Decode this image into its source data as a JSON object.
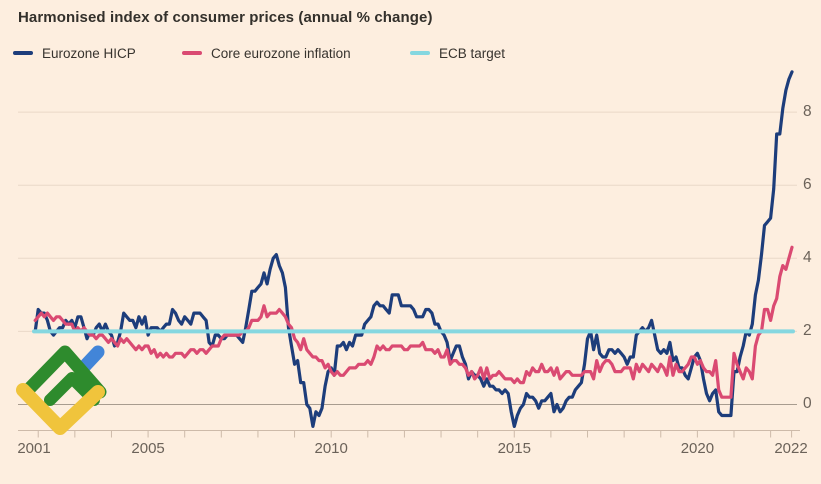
{
  "header": {
    "title": "Harmonised index of consumer prices (annual % change)"
  },
  "legend": [
    {
      "label": "Eurozone HICP",
      "color": "#1d3d7b"
    },
    {
      "label": "Core eurozone inflation",
      "color": "#da4a72"
    },
    {
      "label": "ECB target",
      "color": "#85d7e0"
    }
  ],
  "colors": {
    "background": "#fdeedf",
    "grid": "#ead8c8",
    "grid_zero": "#a89c8f",
    "axis": "#cdbaa9",
    "tick_label": "#6b6259",
    "title_text": "#33302b"
  },
  "watermark": {
    "name": "litefinance-logo",
    "green": "#2e8b2d",
    "blue": "#4285d8",
    "yellow": "#f0c43c"
  },
  "chart_data": {
    "type": "line",
    "title": "Harmonised index of consumer prices (annual % change)",
    "xlabel": "",
    "ylabel": "annual % change",
    "grid": "horizontal",
    "legend_position": "top",
    "xlim": [
      2001,
      2022.75
    ],
    "ylim": [
      -1,
      9.5
    ],
    "y_ticks": [
      0,
      2,
      4,
      6,
      8
    ],
    "x_tick_years": [
      2002,
      2003,
      2004,
      2005,
      2006,
      2007,
      2008,
      2009,
      2010,
      2011,
      2012,
      2013,
      2014,
      2015,
      2016,
      2017,
      2018,
      2019,
      2020,
      2021,
      2022
    ],
    "x_tick_labels": [
      {
        "label": "2001",
        "year": 2001,
        "edge": "start"
      },
      {
        "label": "2005",
        "year": 2005
      },
      {
        "label": "2010",
        "year": 2010
      },
      {
        "label": "2015",
        "year": 2015
      },
      {
        "label": "2020",
        "year": 2020
      },
      {
        "label": "2022",
        "year": 2022,
        "edge": "end"
      }
    ],
    "series": [
      {
        "name": "Eurozone HICP",
        "color": "#1d3d7b",
        "start_year": 2001.9167,
        "interval_months": 1,
        "values": [
          2.0,
          2.6,
          2.5,
          2.5,
          2.3,
          2.0,
          1.9,
          2.0,
          2.1,
          2.1,
          2.3,
          2.2,
          2.3,
          2.1,
          2.4,
          2.4,
          2.1,
          1.8,
          2.0,
          1.9,
          2.1,
          2.2,
          2.0,
          2.2,
          2.0,
          1.9,
          1.6,
          1.7,
          2.0,
          2.5,
          2.4,
          2.3,
          2.3,
          2.1,
          2.4,
          2.2,
          2.4,
          1.9,
          2.1,
          2.1,
          2.1,
          2.0,
          2.1,
          2.2,
          2.2,
          2.6,
          2.5,
          2.3,
          2.2,
          2.4,
          2.3,
          2.2,
          2.5,
          2.5,
          2.5,
          2.4,
          2.3,
          1.7,
          1.6,
          1.9,
          1.9,
          1.8,
          1.8,
          1.9,
          1.9,
          1.9,
          1.9,
          1.8,
          1.7,
          2.1,
          2.6,
          3.1,
          3.1,
          3.2,
          3.3,
          3.6,
          3.3,
          3.7,
          4.0,
          4.1,
          3.8,
          3.6,
          3.2,
          2.1,
          1.6,
          1.1,
          1.2,
          0.6,
          0.6,
          0.0,
          -0.1,
          -0.6,
          -0.2,
          -0.3,
          -0.1,
          0.5,
          0.9,
          1.0,
          0.8,
          1.6,
          1.6,
          1.7,
          1.5,
          1.7,
          1.6,
          1.9,
          1.9,
          1.9,
          2.2,
          2.3,
          2.4,
          2.7,
          2.8,
          2.7,
          2.7,
          2.6,
          2.5,
          3.0,
          3.0,
          3.0,
          2.7,
          2.7,
          2.7,
          2.7,
          2.6,
          2.4,
          2.4,
          2.4,
          2.6,
          2.6,
          2.5,
          2.2,
          2.2,
          2.0,
          1.9,
          1.7,
          1.2,
          1.4,
          1.6,
          1.6,
          1.3,
          1.1,
          0.7,
          0.9,
          0.8,
          0.8,
          0.7,
          0.5,
          0.7,
          0.5,
          0.5,
          0.4,
          0.4,
          0.3,
          0.4,
          0.3,
          -0.2,
          -0.6,
          -0.3,
          -0.1,
          0.0,
          0.3,
          0.2,
          0.2,
          0.1,
          -0.1,
          0.1,
          0.1,
          0.2,
          0.3,
          -0.2,
          0.0,
          -0.2,
          -0.1,
          0.1,
          0.2,
          0.2,
          0.4,
          0.5,
          0.6,
          1.1,
          1.8,
          2.0,
          1.5,
          1.9,
          1.4,
          1.3,
          1.3,
          1.5,
          1.5,
          1.4,
          1.5,
          1.4,
          1.3,
          1.1,
          1.3,
          1.3,
          1.9,
          2.0,
          2.1,
          2.0,
          2.1,
          2.3,
          1.9,
          1.5,
          1.4,
          1.5,
          1.4,
          1.7,
          1.2,
          1.3,
          1.0,
          1.0,
          0.8,
          0.7,
          1.0,
          1.3,
          1.4,
          1.2,
          0.7,
          0.3,
          0.1,
          0.3,
          0.4,
          -0.2,
          -0.3,
          -0.3,
          -0.3,
          -0.3,
          0.9,
          0.9,
          1.3,
          1.6,
          2.0,
          1.9,
          2.2,
          3.0,
          3.4,
          4.1,
          4.9,
          5.0,
          5.1,
          5.9,
          7.4,
          7.4,
          8.1,
          8.6,
          8.9,
          9.1
        ]
      },
      {
        "name": "Core eurozone inflation",
        "color": "#da4a72",
        "start_year": 2001.9167,
        "interval_months": 1,
        "values": [
          2.3,
          2.4,
          2.5,
          2.4,
          2.5,
          2.4,
          2.3,
          2.4,
          2.4,
          2.3,
          2.2,
          2.2,
          2.2,
          2.0,
          2.1,
          2.0,
          2.1,
          2.0,
          1.9,
          1.9,
          1.8,
          1.9,
          1.9,
          1.8,
          1.7,
          1.8,
          1.7,
          1.6,
          1.8,
          1.7,
          1.8,
          1.7,
          1.6,
          1.5,
          1.6,
          1.5,
          1.6,
          1.6,
          1.4,
          1.5,
          1.3,
          1.4,
          1.3,
          1.4,
          1.3,
          1.3,
          1.4,
          1.4,
          1.4,
          1.3,
          1.4,
          1.5,
          1.5,
          1.4,
          1.5,
          1.5,
          1.4,
          1.5,
          1.6,
          1.6,
          1.6,
          1.8,
          1.9,
          1.9,
          1.9,
          1.9,
          1.9,
          1.9,
          2.0,
          2.0,
          2.1,
          2.3,
          2.3,
          2.3,
          2.4,
          2.7,
          2.4,
          2.5,
          2.5,
          2.5,
          2.6,
          2.5,
          2.4,
          2.2,
          2.1,
          1.8,
          1.7,
          1.5,
          1.8,
          1.5,
          1.4,
          1.3,
          1.3,
          1.2,
          1.2,
          1.0,
          1.1,
          0.9,
          0.8,
          0.9,
          0.8,
          0.8,
          0.9,
          1.0,
          1.0,
          1.0,
          1.1,
          1.1,
          1.1,
          1.2,
          1.1,
          1.3,
          1.6,
          1.5,
          1.6,
          1.5,
          1.5,
          1.6,
          1.6,
          1.6,
          1.6,
          1.5,
          1.5,
          1.6,
          1.6,
          1.6,
          1.6,
          1.7,
          1.5,
          1.5,
          1.5,
          1.4,
          1.5,
          1.3,
          1.3,
          1.5,
          1.1,
          1.2,
          1.2,
          1.1,
          1.1,
          1.0,
          0.8,
          0.9,
          0.7,
          0.8,
          1.0,
          0.7,
          1.0,
          0.7,
          0.8,
          0.8,
          0.9,
          0.8,
          0.7,
          0.7,
          0.7,
          0.6,
          0.7,
          0.6,
          0.6,
          0.9,
          0.8,
          1.0,
          0.9,
          0.9,
          1.1,
          0.9,
          0.9,
          1.0,
          0.8,
          1.0,
          0.7,
          0.8,
          0.9,
          0.9,
          0.8,
          0.8,
          0.8,
          0.8,
          0.9,
          0.9,
          0.9,
          0.7,
          1.2,
          0.9,
          1.1,
          1.2,
          1.2,
          1.1,
          0.9,
          0.9,
          0.9,
          1.0,
          1.0,
          1.0,
          0.7,
          1.1,
          0.9,
          1.1,
          1.0,
          0.9,
          1.1,
          1.0,
          0.9,
          1.1,
          1.0,
          0.8,
          1.3,
          0.8,
          1.1,
          0.9,
          0.9,
          1.0,
          1.1,
          1.3,
          1.3,
          1.1,
          1.2,
          1.0,
          0.9,
          0.9,
          0.8,
          1.2,
          0.4,
          0.2,
          0.2,
          0.2,
          0.2,
          1.4,
          1.1,
          0.9,
          0.7,
          1.0,
          0.9,
          0.7,
          1.6,
          1.9,
          2.0,
          2.6,
          2.6,
          2.3,
          2.7,
          2.9,
          3.5,
          3.8,
          3.7,
          4.0,
          4.3
        ]
      },
      {
        "name": "ECB target",
        "color": "#85d7e0",
        "constant": 2
      }
    ]
  }
}
